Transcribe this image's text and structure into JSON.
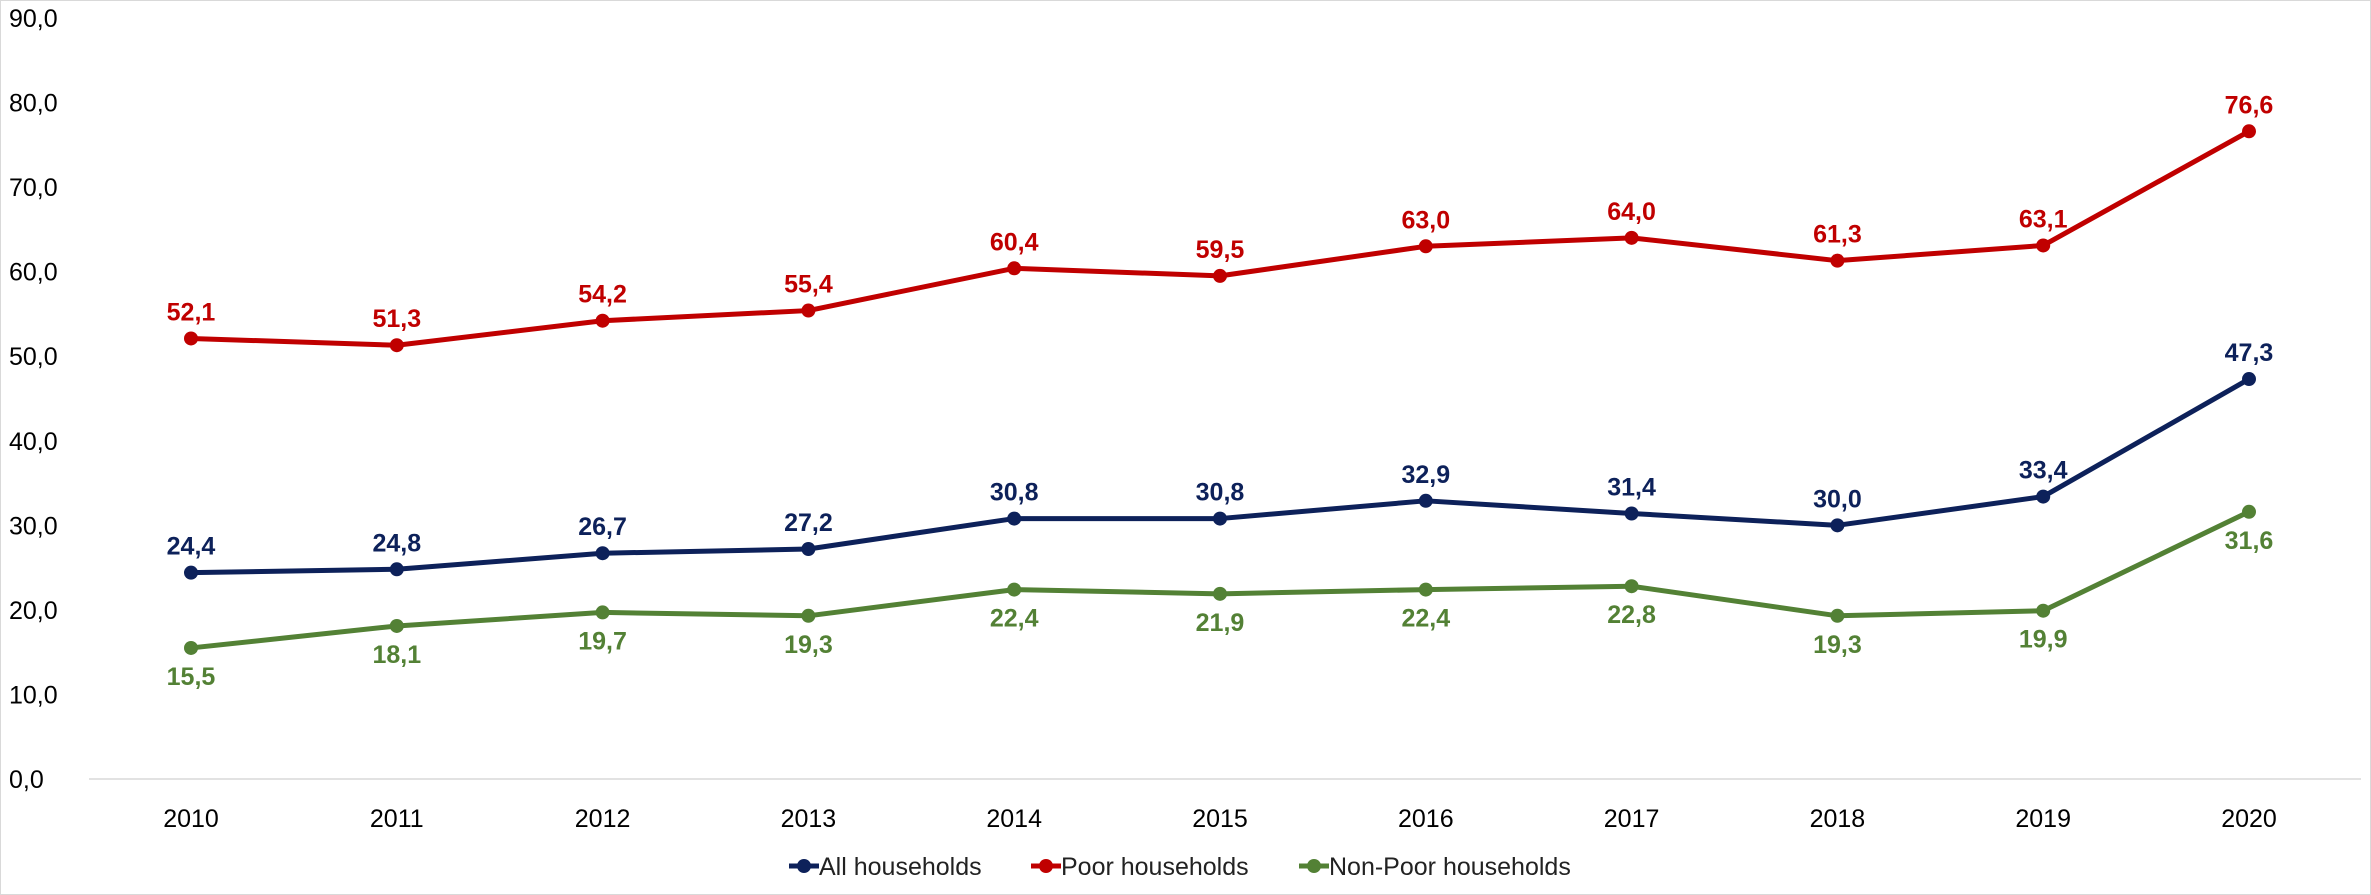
{
  "chart_data": {
    "type": "line",
    "title": "",
    "xlabel": "",
    "ylabel": "",
    "categories": [
      "2010",
      "2011",
      "2012",
      "2013",
      "2014",
      "2015",
      "2016",
      "2017",
      "2018",
      "2019",
      "2020"
    ],
    "ylim": [
      0,
      90
    ],
    "yticks": [
      0,
      10,
      20,
      30,
      40,
      50,
      60,
      70,
      80,
      90
    ],
    "ytick_labels": [
      "0,0",
      "10,0",
      "20,0",
      "30,0",
      "40,0",
      "50,0",
      "60,0",
      "70,0",
      "80,0",
      "90,0"
    ],
    "grid": false,
    "legend_position": "bottom",
    "series": [
      {
        "name": "All households",
        "color": "#0d215a",
        "values": [
          24.4,
          24.8,
          26.7,
          27.2,
          30.8,
          30.8,
          32.9,
          31.4,
          30.0,
          33.4,
          47.3
        ],
        "labels": [
          "24,4",
          "24,8",
          "26,7",
          "27,2",
          "30,8",
          "30,8",
          "32,9",
          "31,4",
          "30,0",
          "33,4",
          "47,3"
        ],
        "label_position": "above"
      },
      {
        "name": "Poor households",
        "color": "#c00000",
        "values": [
          52.1,
          51.3,
          54.2,
          55.4,
          60.4,
          59.5,
          63.0,
          64.0,
          61.3,
          63.1,
          76.6
        ],
        "labels": [
          "52,1",
          "51,3",
          "54,2",
          "55,4",
          "60,4",
          "59,5",
          "63,0",
          "64,0",
          "61,3",
          "63,1",
          "76,6"
        ],
        "label_position": "above"
      },
      {
        "name": "Non-Poor households",
        "color": "#538135",
        "values": [
          15.5,
          18.1,
          19.7,
          19.3,
          22.4,
          21.9,
          22.4,
          22.8,
          19.3,
          19.9,
          31.6
        ],
        "labels": [
          "15,5",
          "18,1",
          "19,7",
          "19,3",
          "22,4",
          "21,9",
          "22,4",
          "22,8",
          "19,3",
          "19,9",
          "31,6"
        ],
        "label_position": "below"
      }
    ]
  }
}
